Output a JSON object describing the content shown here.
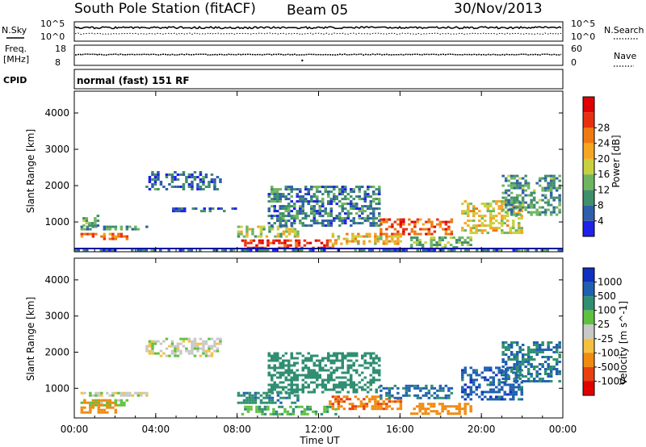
{
  "header": {
    "station": "South Pole Station (fitACF)",
    "beam": "Beam 05",
    "date": "30/Nov/2013"
  },
  "status_panels": {
    "nsky_label": "N.Sky",
    "nsky_ticks": [
      "10^5",
      "10^0"
    ],
    "nsearch_label": "N.Search",
    "nsearch_ticks": [
      "10^5",
      "10^0"
    ],
    "freq_label": "Freq.",
    "freq_unit": "[MHz]",
    "freq_ticks": [
      "18",
      "8"
    ],
    "nave_label": "Nave",
    "nave_ticks": [
      "60",
      "0"
    ],
    "cpid_label": "CPID",
    "cpid_text": "normal (fast) 151 RF"
  },
  "chart_data": [
    {
      "type": "heatmap",
      "name": "power",
      "title": "",
      "ylabel": "Slant Range [km]",
      "xlabel": "",
      "ylim": [
        180,
        4600
      ],
      "yticks": [
        "1000",
        "2000",
        "3000",
        "4000"
      ],
      "xlim_hours": [
        0,
        24
      ],
      "colorbar": {
        "label": "Power [dB]",
        "ticks": [
          "4",
          "8",
          "12",
          "16",
          "20",
          "24",
          "28"
        ],
        "range": [
          0,
          30
        ],
        "colors": [
          "#2020e8",
          "#2f5fa8",
          "#3f8f6a",
          "#6fb560",
          "#c8d040",
          "#f5a623",
          "#f07a10",
          "#e83010",
          "#e00000"
        ]
      },
      "regions": [
        {
          "t": [
            0.3,
            2.6
          ],
          "r": [
            550,
            700
          ],
          "v": 22
        },
        {
          "t": [
            0.3,
            3.5
          ],
          "r": [
            780,
            900
          ],
          "v": 8
        },
        {
          "t": [
            0.4,
            1.2
          ],
          "r": [
            900,
            1200
          ],
          "v": 10
        },
        {
          "t": [
            3.5,
            7.2
          ],
          "r": [
            1900,
            2400
          ],
          "v": 6
        },
        {
          "t": [
            4.8,
            8.0
          ],
          "r": [
            1300,
            1400
          ],
          "v": 5
        },
        {
          "t": [
            8.2,
            12.8
          ],
          "r": [
            280,
            520
          ],
          "v": 26
        },
        {
          "t": [
            8.0,
            11.0
          ],
          "r": [
            600,
            900
          ],
          "v": 14
        },
        {
          "t": [
            12.5,
            16.0
          ],
          "r": [
            400,
            700
          ],
          "v": 17
        },
        {
          "t": [
            15.0,
            18.5
          ],
          "r": [
            700,
            1100
          ],
          "v": 24
        },
        {
          "t": [
            16.5,
            19.5
          ],
          "r": [
            300,
            600
          ],
          "v": 12
        },
        {
          "t": [
            19.0,
            22.0
          ],
          "r": [
            700,
            1600
          ],
          "v": 16
        },
        {
          "t": [
            21.0,
            23.8
          ],
          "r": [
            1200,
            2300
          ],
          "v": 9
        },
        {
          "t": [
            9.5,
            15.0
          ],
          "r": [
            900,
            2000
          ],
          "v": 7
        },
        {
          "t": [
            0.0,
            24.0
          ],
          "r": [
            200,
            260
          ],
          "v": 6
        }
      ]
    },
    {
      "type": "heatmap",
      "name": "velocity",
      "title": "",
      "ylabel": "Slant Range [km]",
      "xlabel": "Time UT",
      "ylim": [
        180,
        4600
      ],
      "yticks": [
        "1000",
        "2000",
        "3000",
        "4000"
      ],
      "xticks": [
        "00:00",
        "04:00",
        "08:00",
        "12:00",
        "16:00",
        "20:00",
        "00:00"
      ],
      "xlim_hours": [
        0,
        24
      ],
      "colorbar": {
        "label": "Velocity [m s^-1]",
        "ticks": [
          "1000",
          "500",
          "100",
          "25",
          "-25",
          "-100",
          "-500",
          "-1000"
        ],
        "colors": [
          "#1030c0",
          "#2060b0",
          "#2f8f70",
          "#60c040",
          "#c8c8c8",
          "#f5c040",
          "#f08a10",
          "#e84010",
          "#e00000"
        ]
      },
      "regions": [
        {
          "t": [
            0.3,
            2.6
          ],
          "r": [
            550,
            700
          ],
          "v": 50
        },
        {
          "t": [
            0.3,
            3.5
          ],
          "r": [
            780,
            900
          ],
          "v": 0
        },
        {
          "t": [
            3.5,
            7.2
          ],
          "r": [
            1900,
            2400
          ],
          "v": 0
        },
        {
          "t": [
            0.3,
            2.0
          ],
          "r": [
            300,
            700
          ],
          "v": -300
        },
        {
          "t": [
            8.2,
            12.8
          ],
          "r": [
            280,
            520
          ],
          "v": 100
        },
        {
          "t": [
            8.0,
            11.0
          ],
          "r": [
            600,
            900
          ],
          "v": 400
        },
        {
          "t": [
            12.5,
            16.0
          ],
          "r": [
            400,
            800
          ],
          "v": -400
        },
        {
          "t": [
            15.0,
            18.5
          ],
          "r": [
            700,
            1100
          ],
          "v": 600
        },
        {
          "t": [
            16.5,
            19.5
          ],
          "r": [
            300,
            600
          ],
          "v": -200
        },
        {
          "t": [
            19.0,
            22.0
          ],
          "r": [
            700,
            1600
          ],
          "v": 800
        },
        {
          "t": [
            21.0,
            23.8
          ],
          "r": [
            1200,
            2300
          ],
          "v": 500
        },
        {
          "t": [
            9.5,
            15.0
          ],
          "r": [
            900,
            2000
          ],
          "v": 300
        }
      ]
    }
  ]
}
